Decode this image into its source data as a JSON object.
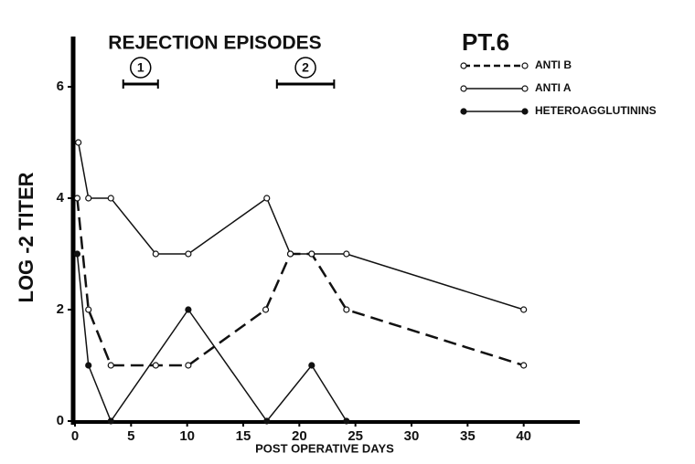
{
  "chart_data": {
    "type": "line",
    "title": "PT.6",
    "annotation": "REJECTION EPISODES",
    "episodes": [
      {
        "label": "1",
        "start": 4.3,
        "end": 7.4,
        "level": 6
      },
      {
        "label": "2",
        "start": 18,
        "end": 23.1,
        "level": 6
      }
    ],
    "xlabel": "POST OPERATIVE DAYS",
    "ylabel": "LOG -2  TITER",
    "xlim": [
      0,
      45
    ],
    "xticks": [
      0,
      5,
      10,
      15,
      20,
      25,
      30,
      35,
      40
    ],
    "ylim": [
      0,
      7
    ],
    "yticks": [
      0,
      2,
      4,
      6
    ],
    "grid": false,
    "legend": "top-right",
    "series": [
      {
        "name": "ANTI B",
        "color": "#111111",
        "line_style": "dashed",
        "marker": "open",
        "x": [
          0.2,
          1.2,
          3.2,
          7.2,
          10.1,
          17,
          19.2,
          21.1,
          24.2,
          40
        ],
        "values": [
          4,
          2,
          1,
          1,
          1,
          2,
          3,
          3,
          2,
          1
        ]
      },
      {
        "name": "ANTI A",
        "color": "#111111",
        "line_style": "solid",
        "marker": "open",
        "x": [
          0.3,
          1.2,
          3.2,
          7.2,
          10.1,
          17.1,
          19.2,
          21.1,
          24.2,
          40
        ],
        "values": [
          5,
          4,
          4,
          3,
          3,
          4,
          3,
          3,
          3,
          2
        ]
      },
      {
        "name": "HETEROAGGLUTININS",
        "color": "#111111",
        "line_style": "solid",
        "marker": "filled",
        "x": [
          0.2,
          1.2,
          3.2,
          10.1,
          17.1,
          21.1,
          24.2
        ],
        "values": [
          3,
          1,
          0,
          2,
          0,
          1,
          0
        ]
      }
    ]
  }
}
